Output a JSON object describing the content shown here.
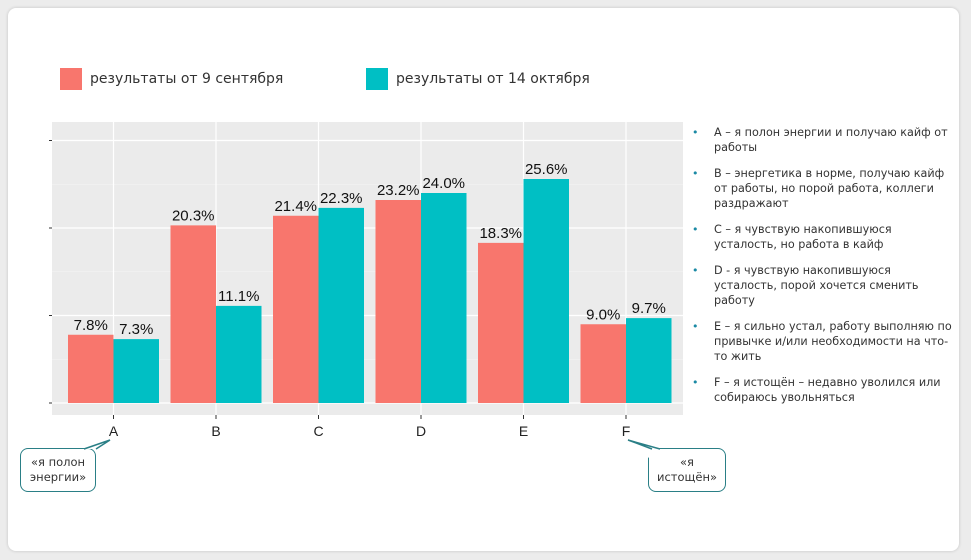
{
  "colors": {
    "series1": "#F8766D",
    "series2": "#00BFC4",
    "panel": "#EBEBEB",
    "accent": "#1B8AA5",
    "callout_border": "#2A7F86"
  },
  "legend": [
    {
      "label": "результаты от 9 сентября"
    },
    {
      "label": "результаты от 14 октября"
    }
  ],
  "chart_data": {
    "type": "bar",
    "categories": [
      "A",
      "B",
      "C",
      "D",
      "E",
      "F"
    ],
    "series": [
      {
        "name": "результаты от 9 сентября",
        "values": [
          7.8,
          20.3,
          21.4,
          23.2,
          18.3,
          9.0
        ],
        "labels": [
          "7.8%",
          "20.3%",
          "21.4%",
          "23.2%",
          "18.3%",
          "9.0%"
        ]
      },
      {
        "name": "результаты от 14 октября",
        "values": [
          7.3,
          11.1,
          22.3,
          24.0,
          25.6,
          9.7
        ],
        "labels": [
          "7.3%",
          "11.1%",
          "22.3%",
          "24.0%",
          "25.6%",
          "9.7%"
        ]
      }
    ],
    "ylim": [
      0,
      30
    ],
    "yticks": [
      0,
      10,
      20,
      30
    ],
    "grid": true,
    "legend_position": "top"
  },
  "notes": [
    "A – я полон энергии и получаю кайф от работы",
    "B – энергетика в норме, получаю кайф от работы, но порой работа, коллеги раздражают",
    "C – я чувствую накопившуюся усталость, но работа в кайф",
    "D - я чувствую накопившуюся усталость, порой хочется сменить работу",
    "E – я сильно устал, работу выполняю по привычке и/или необходимости на что-то жить",
    "F – я истощён – недавно уволился или собираюсь увольняться"
  ],
  "callouts": {
    "left": {
      "line1": "«я полон",
      "line2": "энергии»"
    },
    "right": {
      "line1": "«я",
      "line2": "истощён»"
    }
  }
}
